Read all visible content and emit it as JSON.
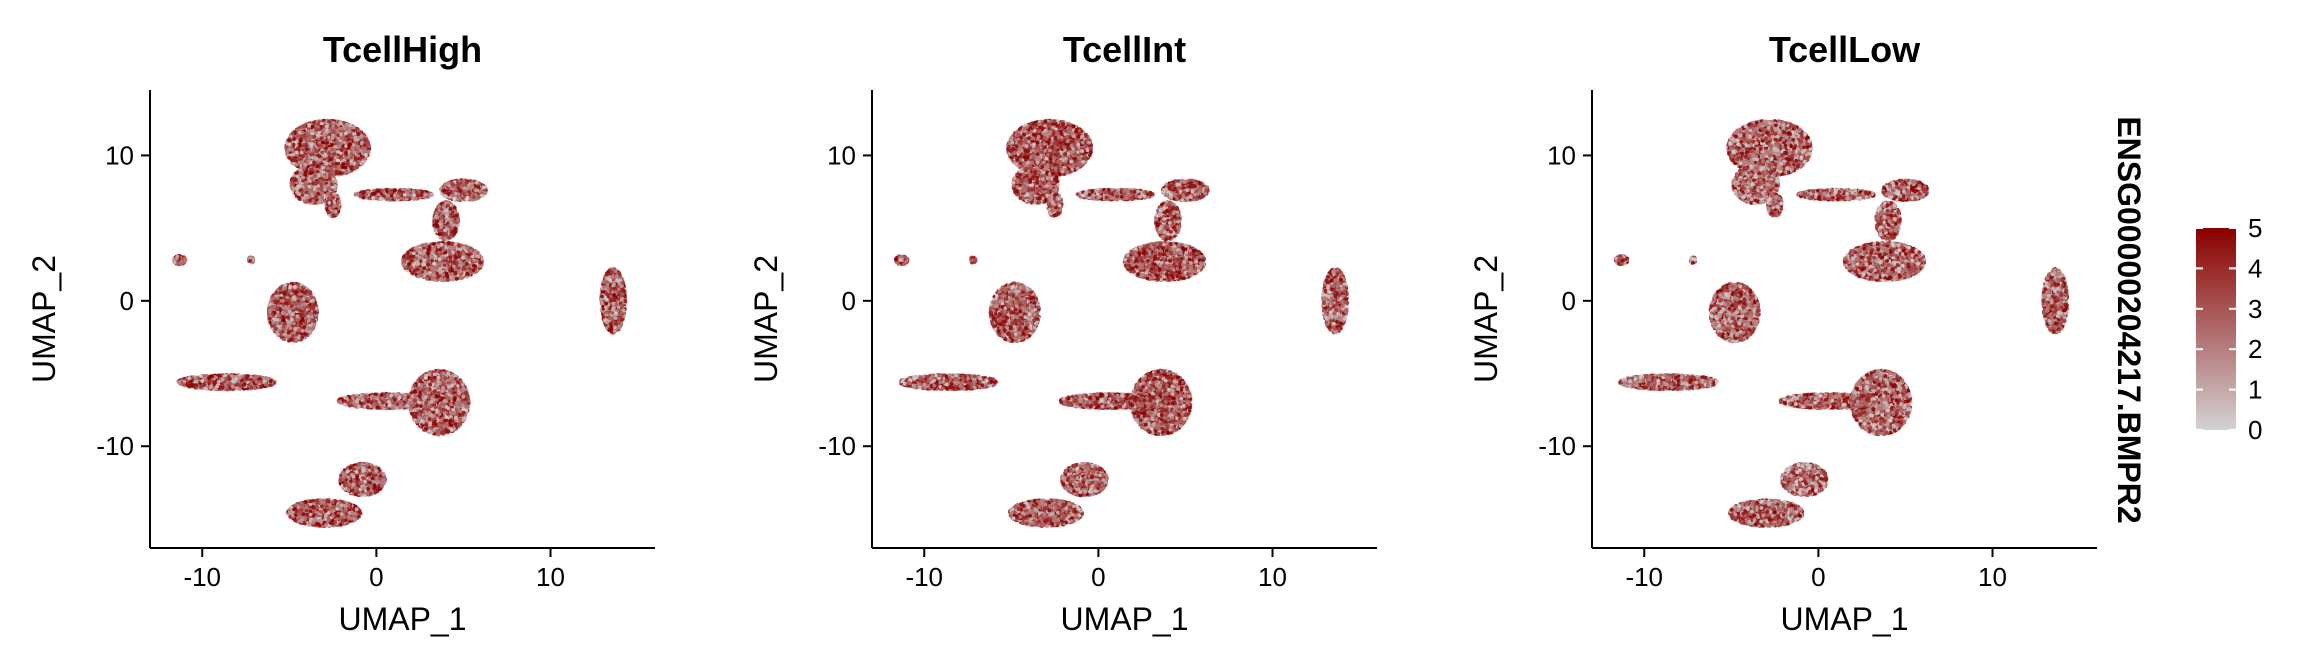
{
  "figure": {
    "feature_label": "ENSG00000204217.BMPR2"
  },
  "chart_data": [
    {
      "type": "scatter",
      "title": "TcellHigh",
      "xlabel": "UMAP_1",
      "ylabel": "UMAP_2",
      "xlim": [
        -13,
        16
      ],
      "ylim": [
        -17,
        14.5
      ],
      "xticks": [
        -10,
        0,
        10
      ],
      "yticks": [
        -10,
        0,
        10
      ],
      "grid": false,
      "point_color_low": "#D3D3D3",
      "point_color_high": "#8B0000"
    },
    {
      "type": "scatter",
      "title": "TcellInt",
      "xlabel": "UMAP_1",
      "ylabel": "UMAP_2",
      "xlim": [
        -13,
        16
      ],
      "ylim": [
        -17,
        14.5
      ],
      "xticks": [
        -10,
        0,
        10
      ],
      "yticks": [
        -10,
        0,
        10
      ],
      "grid": false,
      "point_color_low": "#D3D3D3",
      "point_color_high": "#8B0000"
    },
    {
      "type": "scatter",
      "title": "TcellLow",
      "xlabel": "UMAP_1",
      "ylabel": "UMAP_2",
      "xlim": [
        -13,
        16
      ],
      "ylim": [
        -17,
        14.5
      ],
      "xticks": [
        -10,
        0,
        10
      ],
      "yticks": [
        -10,
        0,
        10
      ],
      "grid": false,
      "point_color_low": "#D3D3D3",
      "point_color_high": "#8B0000"
    }
  ],
  "clusters": [
    {
      "cx": -2.8,
      "cy": 10.5,
      "rx": 2.4,
      "ry": 1.9
    },
    {
      "cx": -3.6,
      "cy": 8.0,
      "rx": 1.3,
      "ry": 1.3
    },
    {
      "cx": -2.5,
      "cy": 6.6,
      "rx": 0.4,
      "ry": 0.8
    },
    {
      "cx": 1.0,
      "cy": 7.3,
      "rx": 2.2,
      "ry": 0.35
    },
    {
      "cx": 5.0,
      "cy": 7.6,
      "rx": 1.3,
      "ry": 0.7
    },
    {
      "cx": 4.0,
      "cy": 5.5,
      "rx": 0.7,
      "ry": 1.3
    },
    {
      "cx": 3.8,
      "cy": 2.7,
      "rx": 2.3,
      "ry": 1.3
    },
    {
      "cx": 13.6,
      "cy": 0.0,
      "rx": 0.7,
      "ry": 2.2
    },
    {
      "cx": -11.3,
      "cy": 2.8,
      "rx": 0.35,
      "ry": 0.3
    },
    {
      "cx": -7.2,
      "cy": 2.8,
      "rx": 0.15,
      "ry": 0.2
    },
    {
      "cx": -4.8,
      "cy": -0.8,
      "rx": 1.4,
      "ry": 2.0
    },
    {
      "cx": -8.6,
      "cy": -5.6,
      "rx": 2.8,
      "ry": 0.5
    },
    {
      "cx": 3.6,
      "cy": -7.0,
      "rx": 1.7,
      "ry": 2.2
    },
    {
      "cx": 0.6,
      "cy": -6.9,
      "rx": 2.8,
      "ry": 0.5
    },
    {
      "cx": -3.0,
      "cy": -14.6,
      "rx": 2.1,
      "ry": 0.9
    },
    {
      "cx": -0.8,
      "cy": -12.3,
      "rx": 1.3,
      "ry": 1.1
    }
  ],
  "colorbar": {
    "ticks": [
      "0",
      "1",
      "2",
      "3",
      "4",
      "5"
    ],
    "colors": [
      "#D3D3D3",
      "#8B0000"
    ],
    "max": 5
  }
}
